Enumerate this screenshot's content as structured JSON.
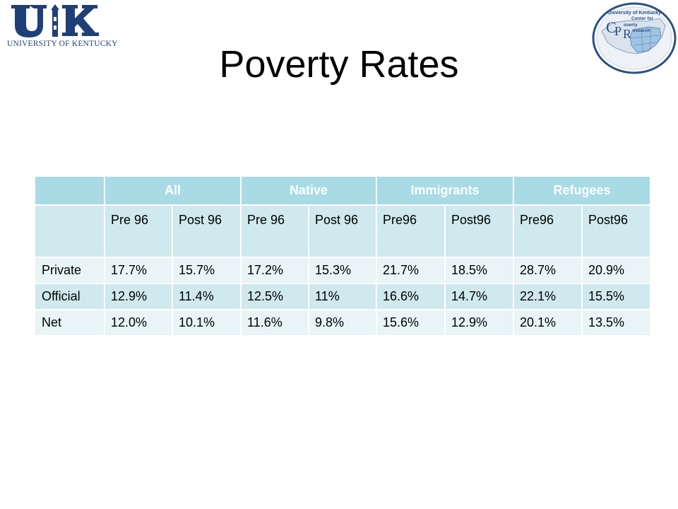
{
  "branding": {
    "uk_logo_text": "UK",
    "uk_name": "UNIVERSITY OF KENTUCKY",
    "cpr_logo_lines": [
      "University of Kentucky",
      "Center for",
      "overty",
      "esearch"
    ],
    "cpr_letters": [
      "C",
      "P",
      "R"
    ],
    "colors": {
      "uk_blue": "#1f3f78",
      "cpr_blue": "#2a4f8a",
      "map_fill": "#9fc4e6"
    }
  },
  "slide": {
    "title": "Poverty Rates"
  },
  "table": {
    "groups": [
      "",
      "All",
      "Native",
      "Immigrants",
      "Refugees"
    ],
    "subheaders": [
      "",
      "Pre 96",
      "Post 96",
      "Pre 96",
      "Post 96",
      "Pre96",
      "Post96",
      "Pre96",
      "Post96"
    ],
    "rows": [
      {
        "label": "Private",
        "values": [
          "17.7%",
          "15.7%",
          "17.2%",
          "15.3%",
          "21.7%",
          "18.5%",
          "28.7%",
          "20.9%"
        ]
      },
      {
        "label": "Official",
        "values": [
          "12.9%",
          "11.4%",
          "12.5%",
          "11%",
          "16.6%",
          "14.7%",
          "22.1%",
          "15.5%"
        ]
      },
      {
        "label": "Net",
        "values": [
          "12.0%",
          "10.1%",
          "11.6%",
          "9.8%",
          "15.6%",
          "12.9%",
          "20.1%",
          "13.5%"
        ]
      }
    ],
    "colors": {
      "header_bg": "#a8dbe4",
      "band_dark": "#cfe9ee",
      "band_light": "#e8f4f6"
    }
  }
}
